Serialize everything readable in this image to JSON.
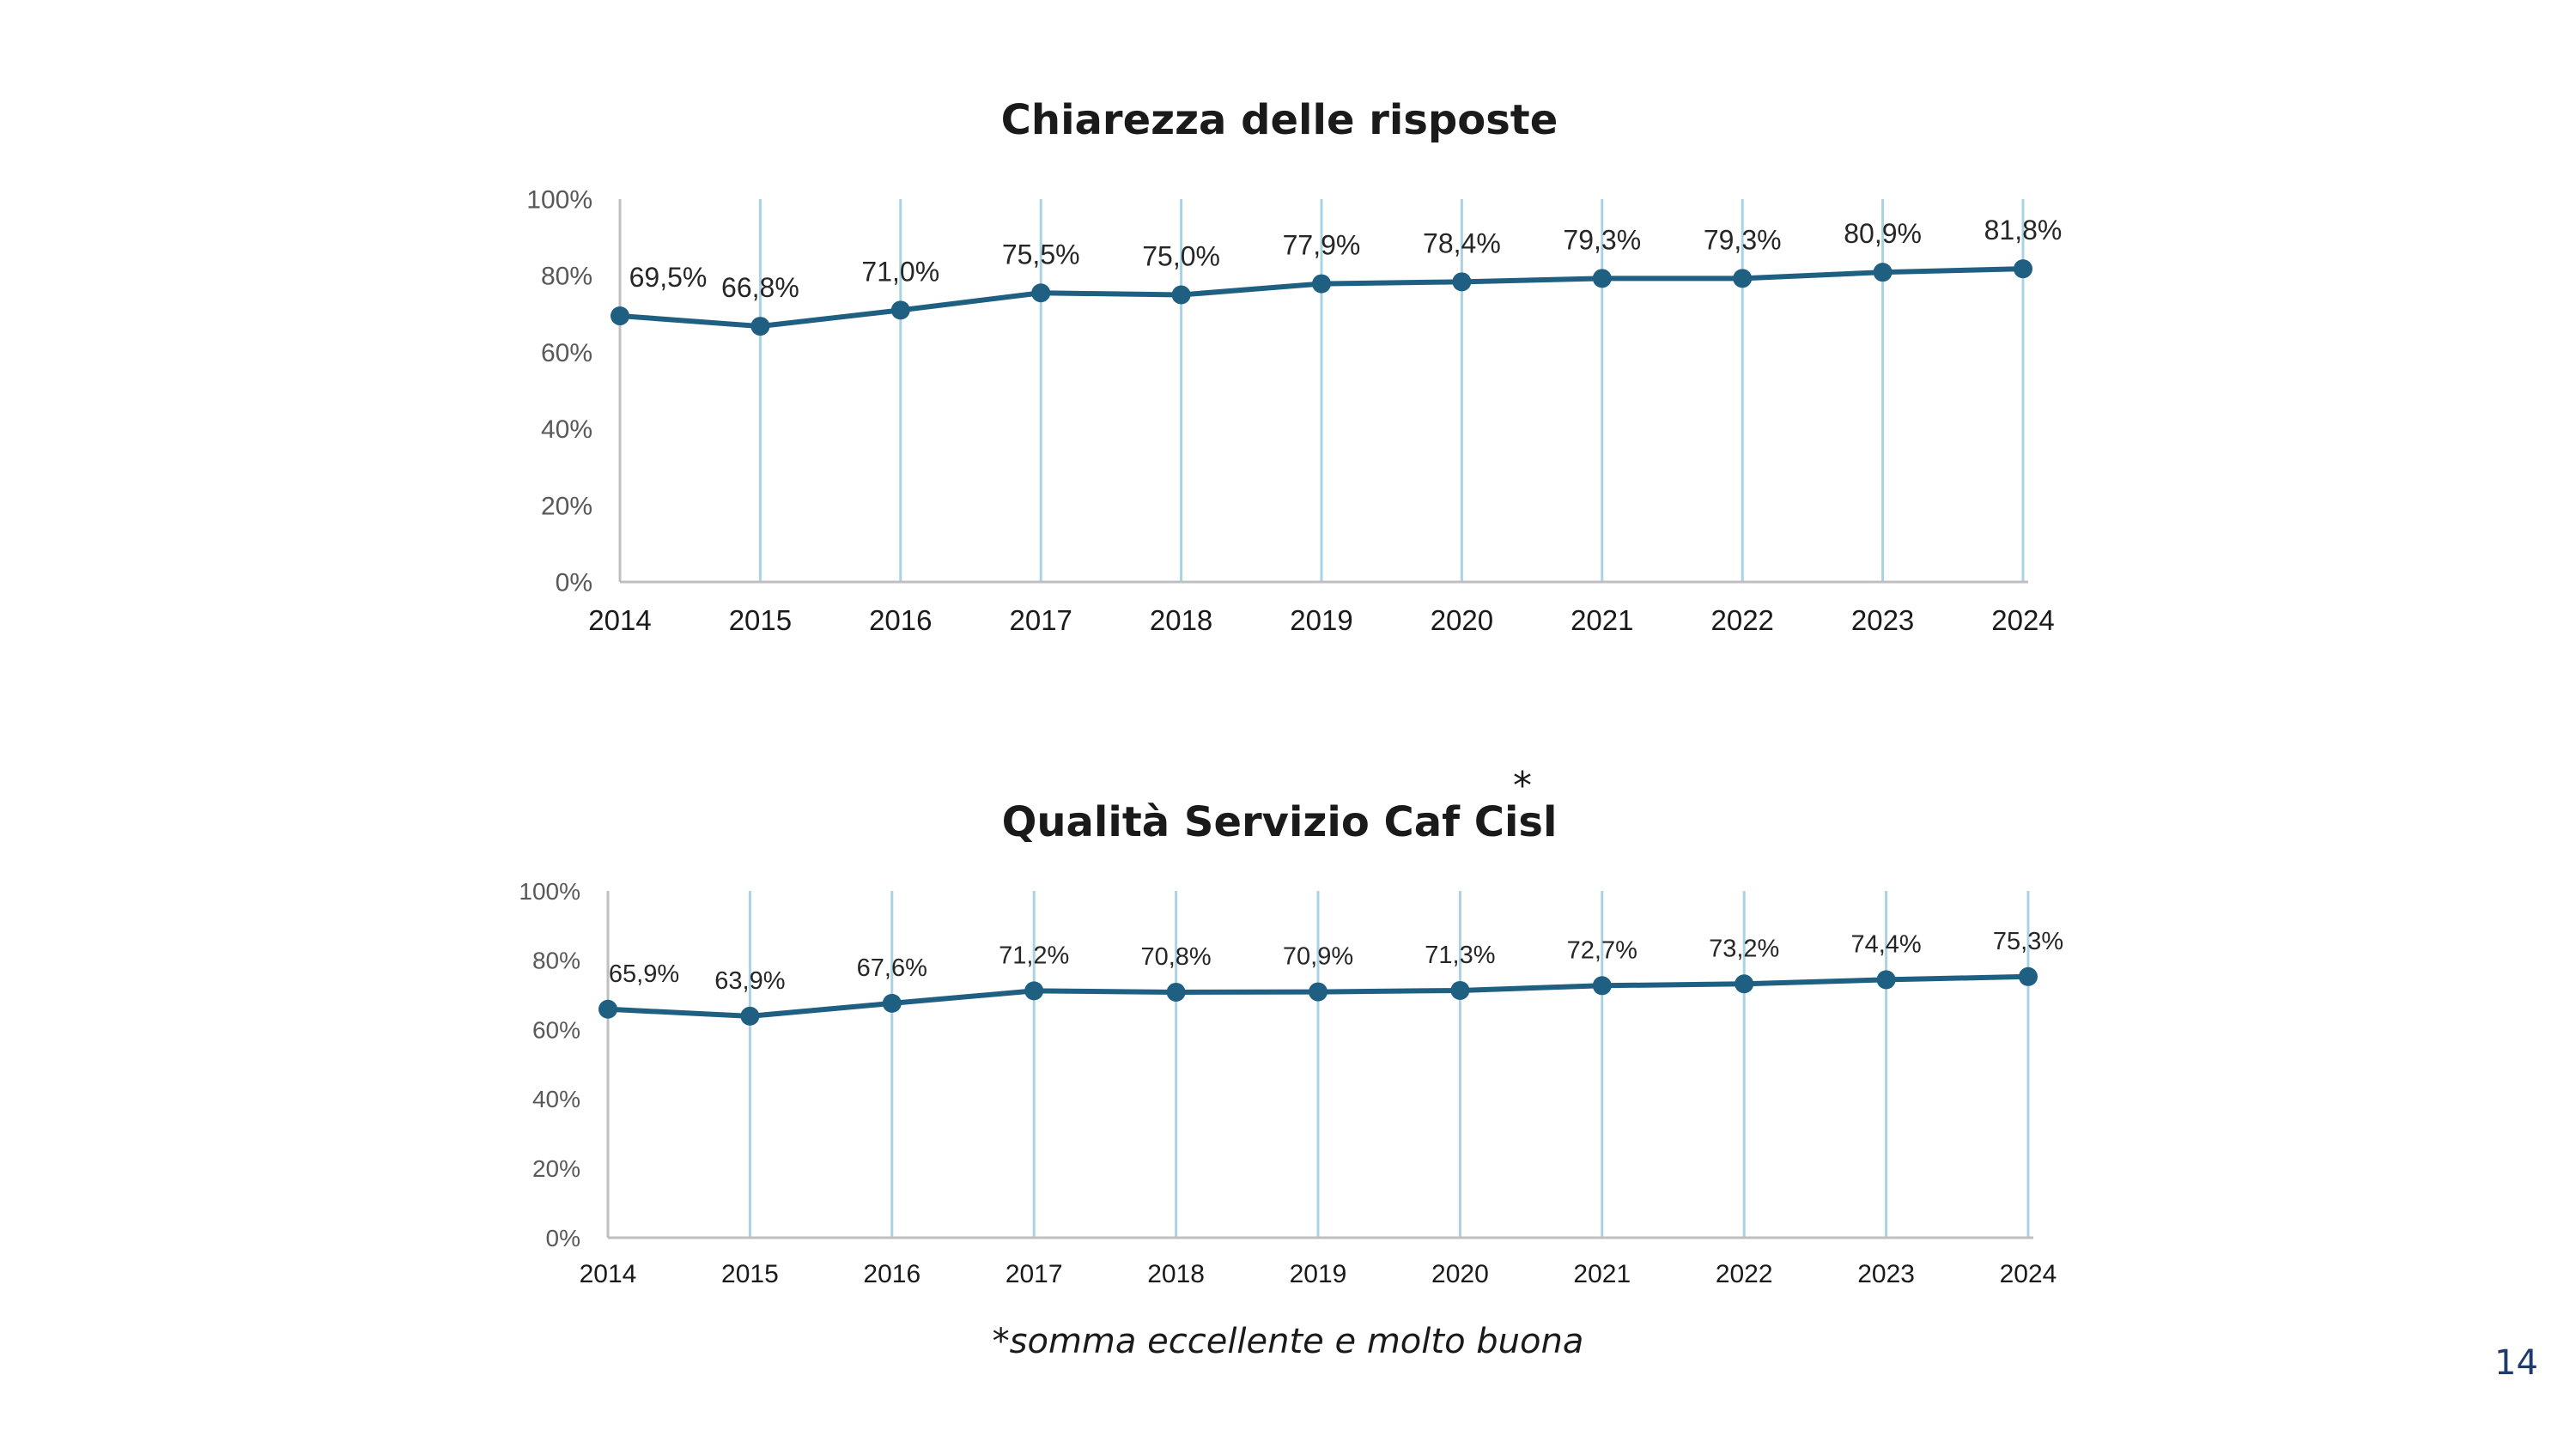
{
  "colors": {
    "line": "#1f5f82",
    "drop_line": "#a9d3e3",
    "axis": "#bfbfbf",
    "tick_text": "#595959",
    "label_text": "#262626"
  },
  "chart_data": [
    {
      "type": "line",
      "title": "Chiarezza delle risposte",
      "x": [
        "2014",
        "2015",
        "2016",
        "2017",
        "2018",
        "2019",
        "2020",
        "2021",
        "2022",
        "2023",
        "2024"
      ],
      "values": [
        69.5,
        66.8,
        71.0,
        75.5,
        75.0,
        77.9,
        78.4,
        79.3,
        79.3,
        80.9,
        81.8
      ],
      "data_labels": [
        "69,5%",
        "66,8%",
        "71,0%",
        "75,5%",
        "75,0%",
        "77,9%",
        "78,4%",
        "79,3%",
        "79,3%",
        "80,9%",
        "81,8%"
      ],
      "y_ticks": [
        "0%",
        "20%",
        "40%",
        "60%",
        "80%",
        "100%"
      ],
      "ylim": [
        0,
        100
      ],
      "drop_lines": true,
      "markers": true
    },
    {
      "type": "line",
      "title": "Qualità Servizio Caf Cisl",
      "title_mark": "*",
      "x": [
        "2014",
        "2015",
        "2016",
        "2017",
        "2018",
        "2019",
        "2020",
        "2021",
        "2022",
        "2023",
        "2024"
      ],
      "values": [
        65.9,
        63.9,
        67.6,
        71.2,
        70.8,
        70.9,
        71.3,
        72.7,
        73.2,
        74.4,
        75.3
      ],
      "data_labels": [
        "65,9%",
        "63,9%",
        "67,6%",
        "71,2%",
        "70,8%",
        "70,9%",
        "71,3%",
        "72,7%",
        "73,2%",
        "74,4%",
        "75,3%"
      ],
      "y_ticks": [
        "0%",
        "20%",
        "40%",
        "60%",
        "80%",
        "100%"
      ],
      "ylim": [
        0,
        100
      ],
      "drop_lines": true,
      "markers": true
    }
  ],
  "footnote": "*somma eccellente e molto buona",
  "page_number": "14"
}
